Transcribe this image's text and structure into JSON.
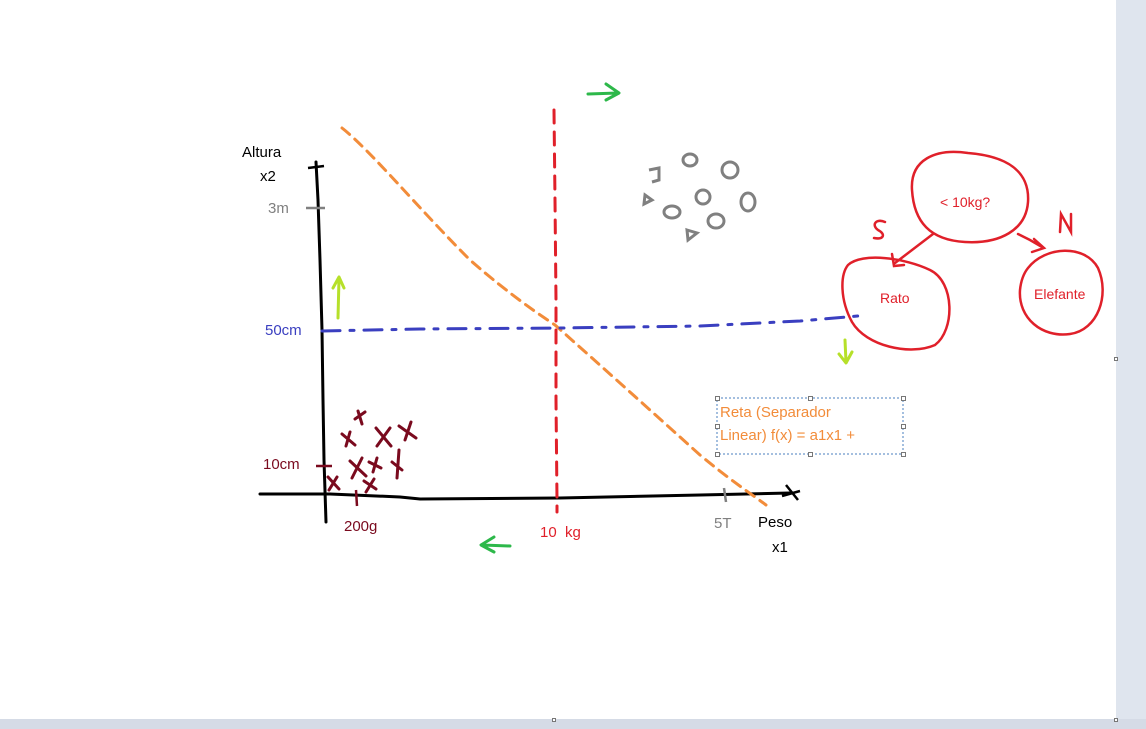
{
  "axes": {
    "y_title": "Altura",
    "y_var": "x2",
    "x_title": "Peso",
    "x_var": "x1",
    "y_ticks": [
      "3m",
      "50cm",
      "10cm"
    ],
    "x_ticks": [
      "200g",
      "10  kg",
      "5T"
    ]
  },
  "textbox": {
    "line1": "Reta (Separador",
    "line2": "Linear) f(x) = a1x1 +"
  },
  "tree": {
    "root": "< 10kg?",
    "yes_branch": "S",
    "no_branch": "N",
    "yes_leaf": "Rato",
    "no_leaf": "Elefante"
  },
  "colors": {
    "axis": "#000000",
    "orange_line": "#f28c3a",
    "red_line": "#e0202a",
    "blue_line": "#3a3fc0",
    "green_arrow": "#2db84a",
    "yellow_arrow": "#b6e02a",
    "gray_marks": "#808080",
    "dark_red_marks": "#7a0a1e",
    "tree_red": "#e0202a"
  }
}
